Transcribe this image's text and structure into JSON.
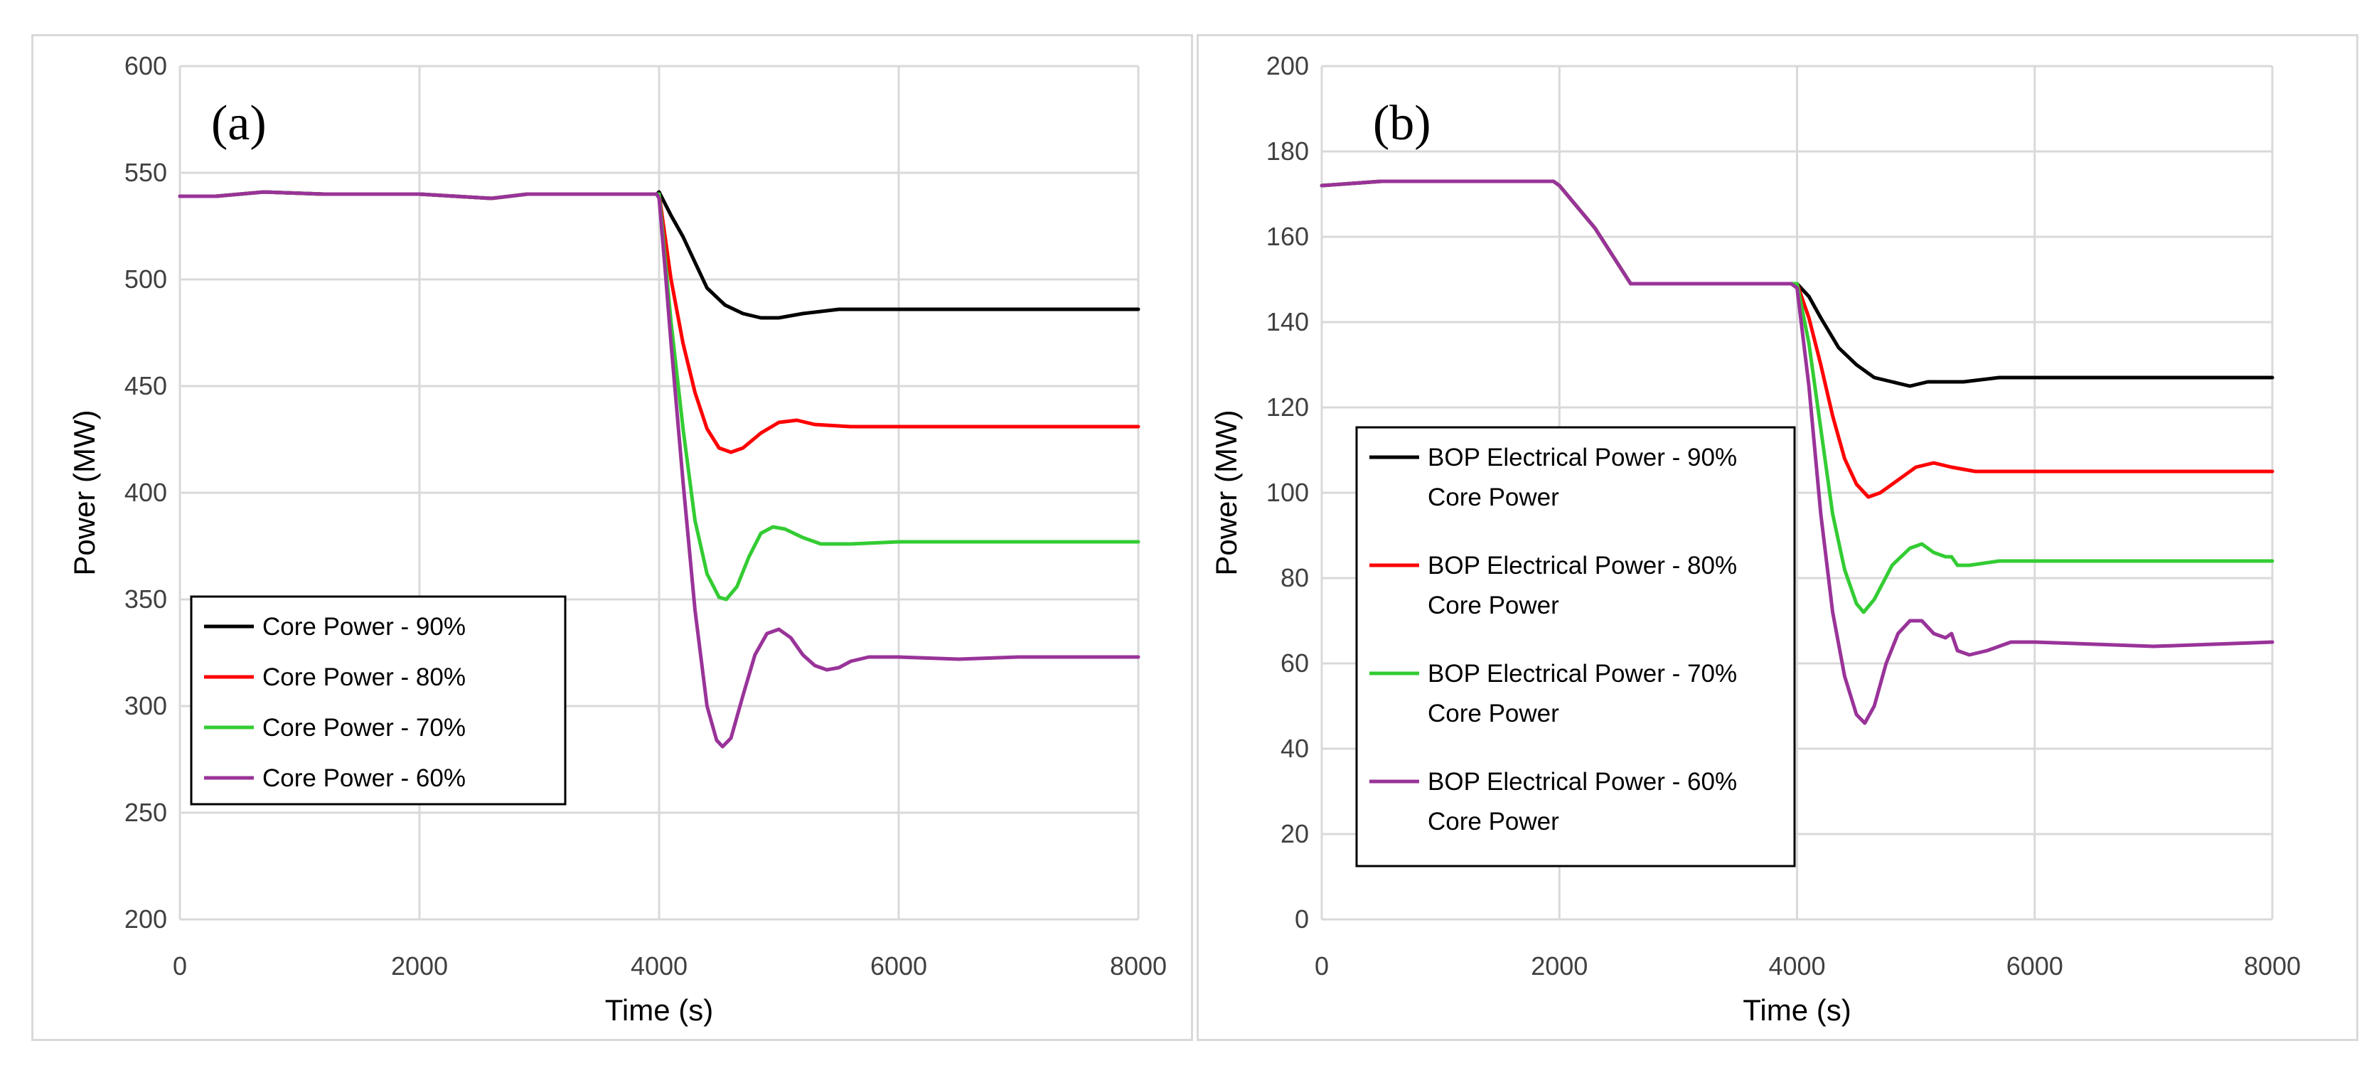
{
  "chart_data": [
    {
      "type": "line",
      "panel_label": "(a)",
      "xlabel": "Time (s)",
      "ylabel": "Power (MW)",
      "xlim": [
        0,
        8000
      ],
      "ylim": [
        200,
        600
      ],
      "xticks": [
        "0",
        "2000",
        "4000",
        "6000",
        "8000"
      ],
      "yticks": [
        "200",
        "250",
        "300",
        "350",
        "400",
        "450",
        "500",
        "550",
        "600"
      ],
      "grid": true,
      "legend_position": "lower-left",
      "series": [
        {
          "name": "Core Power - 90%",
          "color": "#000000",
          "points": [
            [
              0,
              539
            ],
            [
              300,
              539
            ],
            [
              700,
              541
            ],
            [
              1200,
              540
            ],
            [
              2000,
              540
            ],
            [
              2300,
              539
            ],
            [
              2600,
              538
            ],
            [
              2900,
              540
            ],
            [
              3500,
              540
            ],
            [
              3980,
              540
            ],
            [
              4000,
              541
            ],
            [
              4100,
              530
            ],
            [
              4200,
              520
            ],
            [
              4300,
              508
            ],
            [
              4400,
              496
            ],
            [
              4550,
              488
            ],
            [
              4700,
              484
            ],
            [
              4850,
              482
            ],
            [
              5000,
              482
            ],
            [
              5200,
              484
            ],
            [
              5500,
              486
            ],
            [
              6000,
              486
            ],
            [
              7000,
              486
            ],
            [
              8000,
              486
            ]
          ]
        },
        {
          "name": "Core Power - 80%",
          "color": "#ff0000",
          "points": [
            [
              0,
              539
            ],
            [
              300,
              539
            ],
            [
              700,
              541
            ],
            [
              1200,
              540
            ],
            [
              2000,
              540
            ],
            [
              2300,
              539
            ],
            [
              2600,
              538
            ],
            [
              2900,
              540
            ],
            [
              3500,
              540
            ],
            [
              3980,
              540
            ],
            [
              4000,
              540
            ],
            [
              4050,
              520
            ],
            [
              4100,
              500
            ],
            [
              4200,
              470
            ],
            [
              4300,
              447
            ],
            [
              4400,
              430
            ],
            [
              4500,
              421
            ],
            [
              4600,
              419
            ],
            [
              4700,
              421
            ],
            [
              4850,
              428
            ],
            [
              5000,
              433
            ],
            [
              5150,
              434
            ],
            [
              5300,
              432
            ],
            [
              5600,
              431
            ],
            [
              6000,
              431
            ],
            [
              7000,
              431
            ],
            [
              8000,
              431
            ]
          ]
        },
        {
          "name": "Core Power - 70%",
          "color": "#33cc33",
          "points": [
            [
              0,
              539
            ],
            [
              300,
              539
            ],
            [
              700,
              541
            ],
            [
              1200,
              540
            ],
            [
              2000,
              540
            ],
            [
              2300,
              539
            ],
            [
              2600,
              538
            ],
            [
              2900,
              540
            ],
            [
              3500,
              540
            ],
            [
              3980,
              540
            ],
            [
              4000,
              540
            ],
            [
              4050,
              510
            ],
            [
              4100,
              480
            ],
            [
              4200,
              430
            ],
            [
              4300,
              387
            ],
            [
              4400,
              362
            ],
            [
              4500,
              351
            ],
            [
              4560,
              350
            ],
            [
              4650,
              356
            ],
            [
              4750,
              370
            ],
            [
              4850,
              381
            ],
            [
              4950,
              384
            ],
            [
              5050,
              383
            ],
            [
              5200,
              379
            ],
            [
              5350,
              376
            ],
            [
              5600,
              376
            ],
            [
              6000,
              377
            ],
            [
              7000,
              377
            ],
            [
              8000,
              377
            ]
          ]
        },
        {
          "name": "Core Power - 60%",
          "color": "#993399",
          "points": [
            [
              0,
              539
            ],
            [
              300,
              539
            ],
            [
              700,
              541
            ],
            [
              1200,
              540
            ],
            [
              2000,
              540
            ],
            [
              2300,
              539
            ],
            [
              2600,
              538
            ],
            [
              2900,
              540
            ],
            [
              3500,
              540
            ],
            [
              3980,
              540
            ],
            [
              4000,
              538
            ],
            [
              4050,
              505
            ],
            [
              4100,
              470
            ],
            [
              4200,
              405
            ],
            [
              4300,
              345
            ],
            [
              4400,
              300
            ],
            [
              4480,
              284
            ],
            [
              4530,
              281
            ],
            [
              4600,
              285
            ],
            [
              4700,
              305
            ],
            [
              4800,
              324
            ],
            [
              4900,
              334
            ],
            [
              5000,
              336
            ],
            [
              5100,
              332
            ],
            [
              5200,
              324
            ],
            [
              5300,
              319
            ],
            [
              5400,
              317
            ],
            [
              5500,
              318
            ],
            [
              5600,
              321
            ],
            [
              5750,
              323
            ],
            [
              6000,
              323
            ],
            [
              6500,
              322
            ],
            [
              7000,
              323
            ],
            [
              8000,
              323
            ]
          ]
        }
      ]
    },
    {
      "type": "line",
      "panel_label": "(b)",
      "xlabel": "Time (s)",
      "ylabel": "Power (MW)",
      "xlim": [
        0,
        8000
      ],
      "ylim": [
        0,
        200
      ],
      "xticks": [
        "0",
        "2000",
        "4000",
        "6000",
        "8000"
      ],
      "yticks": [
        "0",
        "20",
        "40",
        "60",
        "80",
        "100",
        "120",
        "140",
        "160",
        "180",
        "200"
      ],
      "grid": true,
      "legend_position": "left",
      "series": [
        {
          "name": "BOP Electrical Power - 90% Core Power",
          "color": "#000000",
          "points": [
            [
              0,
              172
            ],
            [
              500,
              173
            ],
            [
              1000,
              173
            ],
            [
              1500,
              173
            ],
            [
              1950,
              173
            ],
            [
              2000,
              172
            ],
            [
              2300,
              162
            ],
            [
              2600,
              149
            ],
            [
              3000,
              149
            ],
            [
              3500,
              149
            ],
            [
              3950,
              149
            ],
            [
              4000,
              149
            ],
            [
              4100,
              146
            ],
            [
              4200,
              141
            ],
            [
              4350,
              134
            ],
            [
              4500,
              130
            ],
            [
              4650,
              127
            ],
            [
              4800,
              126
            ],
            [
              4950,
              125
            ],
            [
              5100,
              126
            ],
            [
              5400,
              126
            ],
            [
              5700,
              127
            ],
            [
              6000,
              127
            ],
            [
              7000,
              127
            ],
            [
              8000,
              127
            ]
          ]
        },
        {
          "name": "BOP Electrical Power - 80% Core Power",
          "color": "#ff0000",
          "points": [
            [
              0,
              172
            ],
            [
              500,
              173
            ],
            [
              1000,
              173
            ],
            [
              1500,
              173
            ],
            [
              1950,
              173
            ],
            [
              2000,
              172
            ],
            [
              2300,
              162
            ],
            [
              2600,
              149
            ],
            [
              3000,
              149
            ],
            [
              3500,
              149
            ],
            [
              3950,
              149
            ],
            [
              4000,
              149
            ],
            [
              4100,
              141
            ],
            [
              4200,
              130
            ],
            [
              4300,
              118
            ],
            [
              4400,
              108
            ],
            [
              4500,
              102
            ],
            [
              4600,
              99
            ],
            [
              4700,
              100
            ],
            [
              4850,
              103
            ],
            [
              5000,
              106
            ],
            [
              5150,
              107
            ],
            [
              5300,
              106
            ],
            [
              5500,
              105
            ],
            [
              6000,
              105
            ],
            [
              7000,
              105
            ],
            [
              8000,
              105
            ]
          ]
        },
        {
          "name": "BOP Electrical Power - 70% Core Power",
          "color": "#33cc33",
          "points": [
            [
              0,
              172
            ],
            [
              500,
              173
            ],
            [
              1000,
              173
            ],
            [
              1500,
              173
            ],
            [
              1950,
              173
            ],
            [
              2000,
              172
            ],
            [
              2300,
              162
            ],
            [
              2600,
              149
            ],
            [
              3000,
              149
            ],
            [
              3500,
              149
            ],
            [
              3950,
              149
            ],
            [
              4000,
              149
            ],
            [
              4100,
              135
            ],
            [
              4200,
              115
            ],
            [
              4300,
              95
            ],
            [
              4400,
              82
            ],
            [
              4500,
              74
            ],
            [
              4560,
              72
            ],
            [
              4650,
              75
            ],
            [
              4800,
              83
            ],
            [
              4950,
              87
            ],
            [
              5050,
              88
            ],
            [
              5150,
              86
            ],
            [
              5250,
              85
            ],
            [
              5300,
              85
            ],
            [
              5350,
              83
            ],
            [
              5450,
              83
            ],
            [
              5700,
              84
            ],
            [
              6000,
              84
            ],
            [
              7000,
              84
            ],
            [
              8000,
              84
            ]
          ]
        },
        {
          "name": "BOP Electrical Power - 60% Core Power",
          "color": "#993399",
          "points": [
            [
              0,
              172
            ],
            [
              500,
              173
            ],
            [
              1000,
              173
            ],
            [
              1500,
              173
            ],
            [
              1950,
              173
            ],
            [
              2000,
              172
            ],
            [
              2300,
              162
            ],
            [
              2600,
              149
            ],
            [
              3000,
              149
            ],
            [
              3500,
              149
            ],
            [
              3950,
              149
            ],
            [
              4000,
              148
            ],
            [
              4100,
              125
            ],
            [
              4200,
              95
            ],
            [
              4300,
              72
            ],
            [
              4400,
              57
            ],
            [
              4500,
              48
            ],
            [
              4570,
              46
            ],
            [
              4650,
              50
            ],
            [
              4750,
              60
            ],
            [
              4850,
              67
            ],
            [
              4950,
              70
            ],
            [
              5050,
              70
            ],
            [
              5150,
              67
            ],
            [
              5250,
              66
            ],
            [
              5300,
              67
            ],
            [
              5350,
              63
            ],
            [
              5450,
              62
            ],
            [
              5600,
              63
            ],
            [
              5800,
              65
            ],
            [
              6000,
              65
            ],
            [
              7000,
              64
            ],
            [
              8000,
              65
            ]
          ]
        }
      ]
    }
  ]
}
